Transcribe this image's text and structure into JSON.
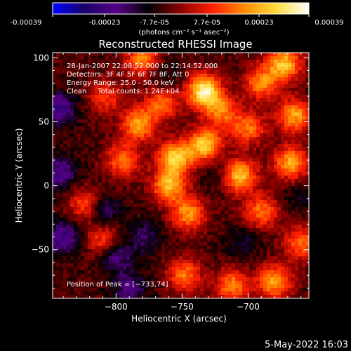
{
  "colorbar": {
    "tick_labels": [
      "-0.00039",
      "-0.00023",
      "-7.7e-05",
      "7.7e-05",
      "0.00023",
      "0.00039"
    ],
    "unit_label": "(photons cm⁻² s⁻¹ asec⁻²)",
    "range": [
      -0.00039,
      0.00039
    ],
    "colors": [
      "#0000ff",
      "#1a0066",
      "#550088",
      "#000000",
      "#8b0000",
      "#ff2000",
      "#ff8c00",
      "#ffdd40",
      "#ffffff"
    ]
  },
  "chart_data": {
    "type": "heatmap",
    "title": "Reconstructed RHESSI Image",
    "xlabel": "Heliocentric X (arcsec)",
    "ylabel": "Heliocentric Y (arcsec)",
    "xlim": [
      -848,
      -654
    ],
    "ylim": [
      -88,
      104
    ],
    "x_ticks": [
      -800,
      -750,
      -700
    ],
    "y_ticks": [
      -50,
      0,
      50,
      100
    ],
    "x_tick_labels": [
      "−800",
      "−750",
      "−700"
    ],
    "y_tick_labels": [
      "−50",
      "0",
      "50",
      "100"
    ],
    "annotations": [
      "28-Jan-2007 22:08:52.000 to 22:14:52.000",
      "Detectors: 3F 4F 5F 6F 7F 8F, Att 0",
      "Energy Range: 25.0 - 50.0 keV",
      "Clean     Total counts: 1.24E+04"
    ],
    "peak_label": "Position of Peak = [−733,74]",
    "peak": [
      -733,
      74
    ],
    "hot_spots": [
      {
        "x": -733,
        "y": 74,
        "value": 1.0
      },
      {
        "x": -755,
        "y": 22,
        "value": 0.85
      },
      {
        "x": -733,
        "y": 32,
        "value": 0.8
      },
      {
        "x": -707,
        "y": 8,
        "value": 0.85
      },
      {
        "x": -760,
        "y": 0,
        "value": 0.75
      },
      {
        "x": -783,
        "y": 48,
        "value": 0.7
      },
      {
        "x": -780,
        "y": 98,
        "value": 0.6
      },
      {
        "x": -795,
        "y": 20,
        "value": 0.55
      },
      {
        "x": -673,
        "y": 95,
        "value": 0.8
      },
      {
        "x": -665,
        "y": 55,
        "value": 0.7
      },
      {
        "x": -668,
        "y": 18,
        "value": 0.7
      },
      {
        "x": -690,
        "y": 80,
        "value": 0.6
      },
      {
        "x": -700,
        "y": 45,
        "value": 0.55
      },
      {
        "x": -720,
        "y": 58,
        "value": 0.55
      },
      {
        "x": -745,
        "y": -22,
        "value": 0.65
      },
      {
        "x": -690,
        "y": -20,
        "value": 0.55
      },
      {
        "x": -680,
        "y": -75,
        "value": 0.7
      },
      {
        "x": -712,
        "y": -78,
        "value": 0.6
      },
      {
        "x": -748,
        "y": -70,
        "value": 0.55
      },
      {
        "x": -823,
        "y": -15,
        "value": 0.5
      },
      {
        "x": -810,
        "y": -42,
        "value": 0.45
      },
      {
        "x": -660,
        "y": -45,
        "value": 0.55
      },
      {
        "x": -808,
        "y": 70,
        "value": 0.4
      },
      {
        "x": -765,
        "y": 65,
        "value": 0.55
      }
    ],
    "cold_spots": [
      {
        "x": -843,
        "y": 60,
        "value": -0.5
      },
      {
        "x": -843,
        "y": 10,
        "value": -0.45
      },
      {
        "x": -840,
        "y": -40,
        "value": -0.5
      },
      {
        "x": -810,
        "y": -20,
        "value": -0.4
      },
      {
        "x": -800,
        "y": -55,
        "value": -0.4
      },
      {
        "x": -778,
        "y": -40,
        "value": -0.3
      },
      {
        "x": -790,
        "y": -80,
        "value": -0.35
      },
      {
        "x": -765,
        "y": 85,
        "value": -0.2
      },
      {
        "x": -720,
        "y": 10,
        "value": -0.2
      },
      {
        "x": -705,
        "y": -45,
        "value": -0.2
      },
      {
        "x": -660,
        "y": -10,
        "value": -0.15
      }
    ]
  },
  "footer": {
    "timestamp": "5-May-2022 16:03"
  }
}
